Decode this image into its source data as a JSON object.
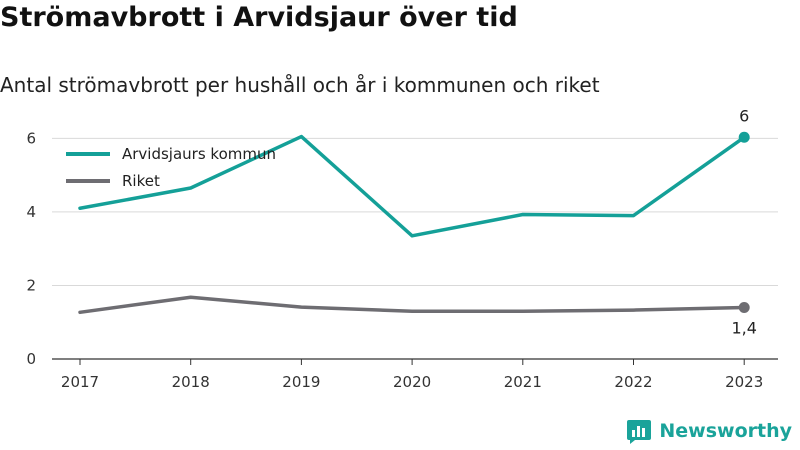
{
  "header": {
    "title": "Strömavbrott i Arvidsjaur över tid",
    "subtitle": "Antal strömavbrott per hushåll och år i kommunen och riket"
  },
  "brand": {
    "name": "Newsworthy",
    "icon": "newsworthy-logo-icon",
    "color": "#1aa39a"
  },
  "chart_data": {
    "type": "line",
    "x": [
      2017,
      2018,
      2019,
      2020,
      2021,
      2022,
      2023
    ],
    "ylim": [
      0,
      6.5
    ],
    "yticks": [
      0,
      2,
      4,
      6
    ],
    "grid": true,
    "legend_position": "top-left",
    "series": [
      {
        "name": "Arvidsjaurs kommun",
        "color": "#14a098",
        "values": [
          4.1,
          4.65,
          6.05,
          3.35,
          3.93,
          3.9,
          6.03
        ],
        "end_label": "6"
      },
      {
        "name": "Riket",
        "color": "#6e6d72",
        "values": [
          1.27,
          1.68,
          1.41,
          1.3,
          1.3,
          1.33,
          1.4
        ],
        "end_label": "1,4"
      }
    ]
  }
}
